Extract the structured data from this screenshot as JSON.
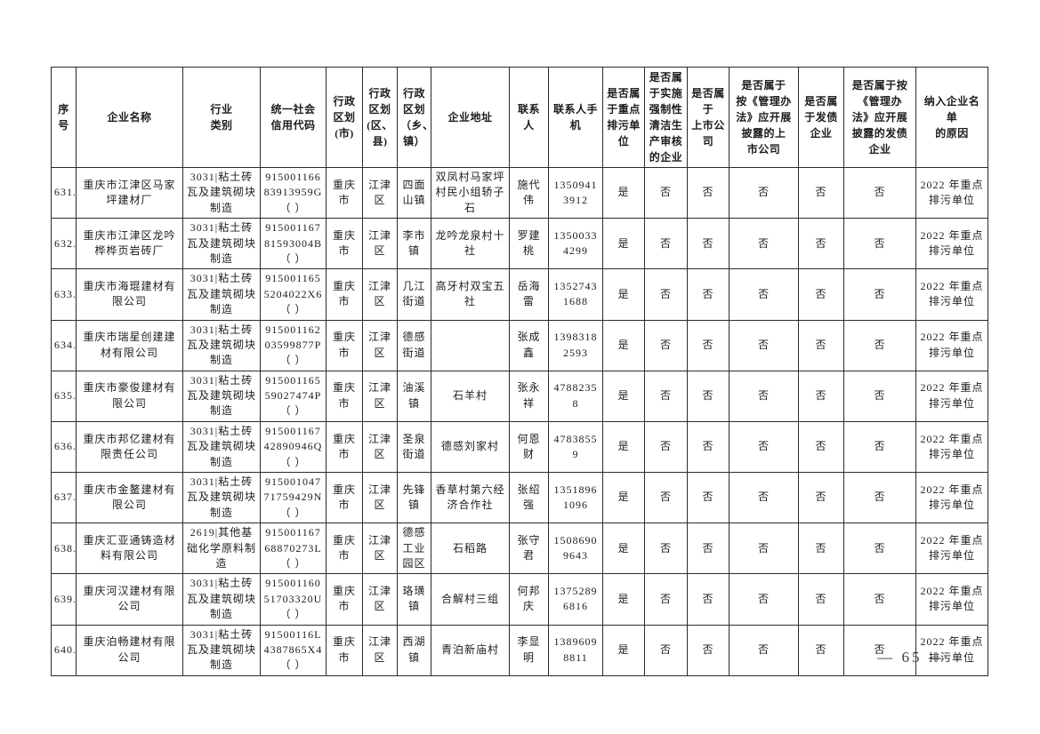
{
  "page": {
    "footer_page_number": "— 65 —"
  },
  "table": {
    "columns": [
      {
        "id": "xuhao",
        "label": "序号"
      },
      {
        "id": "name",
        "label": "企业名称"
      },
      {
        "id": "industry",
        "label": "行业\n类别"
      },
      {
        "id": "credit_code",
        "label": "统一社会\n信用代码"
      },
      {
        "id": "city",
        "label": "行政\n区划\n(市)"
      },
      {
        "id": "district",
        "label": "行政\n区划\n(区、\n县)"
      },
      {
        "id": "town",
        "label": "行政\n区划\n（乡、\n镇）"
      },
      {
        "id": "address",
        "label": "企业地址"
      },
      {
        "id": "contact",
        "label": "联系人"
      },
      {
        "id": "phone",
        "label": "联系人手\n机"
      },
      {
        "id": "key_pollutant",
        "label": "是否属\n于重点\n排污单\n位"
      },
      {
        "id": "cleaner_audit",
        "label": "是否属\n于实施\n强制性\n清洁生\n产审核\n的企业"
      },
      {
        "id": "listed",
        "label": "是否属于\n上市公司"
      },
      {
        "id": "listed_disclosure",
        "label": "是否属于\n按《管理办\n法》应开展\n披露的上\n市公司"
      },
      {
        "id": "bond",
        "label": "是否属\n于发债\n企业"
      },
      {
        "id": "bond_disclosure",
        "label": "是否属于按\n《管理办\n法》应开展\n披露的发债\n企业"
      },
      {
        "id": "reason",
        "label": "纳入企业名单\n的原因"
      }
    ],
    "rows": [
      [
        "631.",
        "重庆市江津区马家坪建材厂",
        "3031|粘土砖瓦及建筑砌块制造",
        "915001166\n83913959G\n（ ）",
        "重庆市",
        "江津区",
        "四面山镇",
        "双凤村马家坪村民小组轿子石",
        "施代伟",
        "13509413912",
        "是",
        "否",
        "否",
        "否",
        "否",
        "否",
        "2022 年重点排污单位"
      ],
      [
        "632.",
        "重庆市江津区龙吟桦桦页岩砖厂",
        "3031|粘土砖瓦及建筑砌块制造",
        "915001167\n81593004B\n（ ）",
        "重庆市",
        "江津区",
        "李市镇",
        "龙吟龙泉村十社",
        "罗建桃",
        "13500334299",
        "是",
        "否",
        "否",
        "否",
        "否",
        "否",
        "2022 年重点排污单位"
      ],
      [
        "633.",
        "重庆市海琨建材有限公司",
        "3031|粘土砖瓦及建筑砌块制造",
        "915001165\n5204022X6\n（ ）",
        "重庆市",
        "江津区",
        "几江街道",
        "高牙村双宝五社",
        "岳海雷",
        "13527431688",
        "是",
        "否",
        "否",
        "否",
        "否",
        "否",
        "2022 年重点排污单位"
      ],
      [
        "634.",
        "重庆市瑞星创建建材有限公司",
        "3031|粘土砖瓦及建筑砌块制造",
        "915001162\n03599877P\n（ ）",
        "重庆市",
        "江津区",
        "德感街道",
        "",
        "张成鑫",
        "13983182593",
        "是",
        "否",
        "否",
        "否",
        "否",
        "否",
        "2022 年重点排污单位"
      ],
      [
        "635.",
        "重庆市豪俊建材有限公司",
        "3031|粘土砖瓦及建筑砌块制造",
        "915001165\n59027474P\n（ ）",
        "重庆市",
        "江津区",
        "油溪镇",
        "石羊村",
        "张永祥",
        "47882358",
        "是",
        "否",
        "否",
        "否",
        "否",
        "否",
        "2022 年重点排污单位"
      ],
      [
        "636.",
        "重庆市邦亿建材有限责任公司",
        "3031|粘土砖瓦及建筑砌块制造",
        "915001167\n42890946Q\n（ ）",
        "重庆市",
        "江津区",
        "圣泉街道",
        "德感刘家村",
        "何恩财",
        "47838559",
        "是",
        "否",
        "否",
        "否",
        "否",
        "否",
        "2022 年重点排污单位"
      ],
      [
        "637.",
        "重庆市金鳌建材有限公司",
        "3031|粘土砖瓦及建筑砌块制造",
        "915001047\n71759429N\n（ ）",
        "重庆市",
        "江津区",
        "先锋镇",
        "香草村第六经济合作社",
        "张绍强",
        "13518961096",
        "是",
        "否",
        "否",
        "否",
        "否",
        "否",
        "2022 年重点排污单位"
      ],
      [
        "638.",
        "重庆汇亚通铸造材料有限公司",
        "2619|其他基础化学原料制造",
        "915001167\n68870273L\n（ ）",
        "重庆市",
        "江津区",
        "德感工业园区",
        "石稻路",
        "张守君",
        "15086909643",
        "是",
        "否",
        "否",
        "否",
        "否",
        "否",
        "2022 年重点排污单位"
      ],
      [
        "639.",
        "重庆河汉建材有限公司",
        "3031|粘土砖瓦及建筑砌块制造",
        "915001160\n51703320U\n（ ）",
        "重庆市",
        "江津区",
        "珞璜镇",
        "合解村三组",
        "何邦庆",
        "13752896816",
        "是",
        "否",
        "否",
        "否",
        "否",
        "否",
        "2022 年重点排污单位"
      ],
      [
        "640.",
        "重庆泊畅建材有限公司",
        "3031|粘土砖瓦及建筑砌块制造",
        "91500116L\n4387865X4\n（ ）",
        "重庆市",
        "江津区",
        "西湖镇",
        "青泊新庙村",
        "李显明",
        "13896098811",
        "是",
        "否",
        "否",
        "否",
        "否",
        "否",
        "2022 年重点排污单位"
      ]
    ]
  }
}
